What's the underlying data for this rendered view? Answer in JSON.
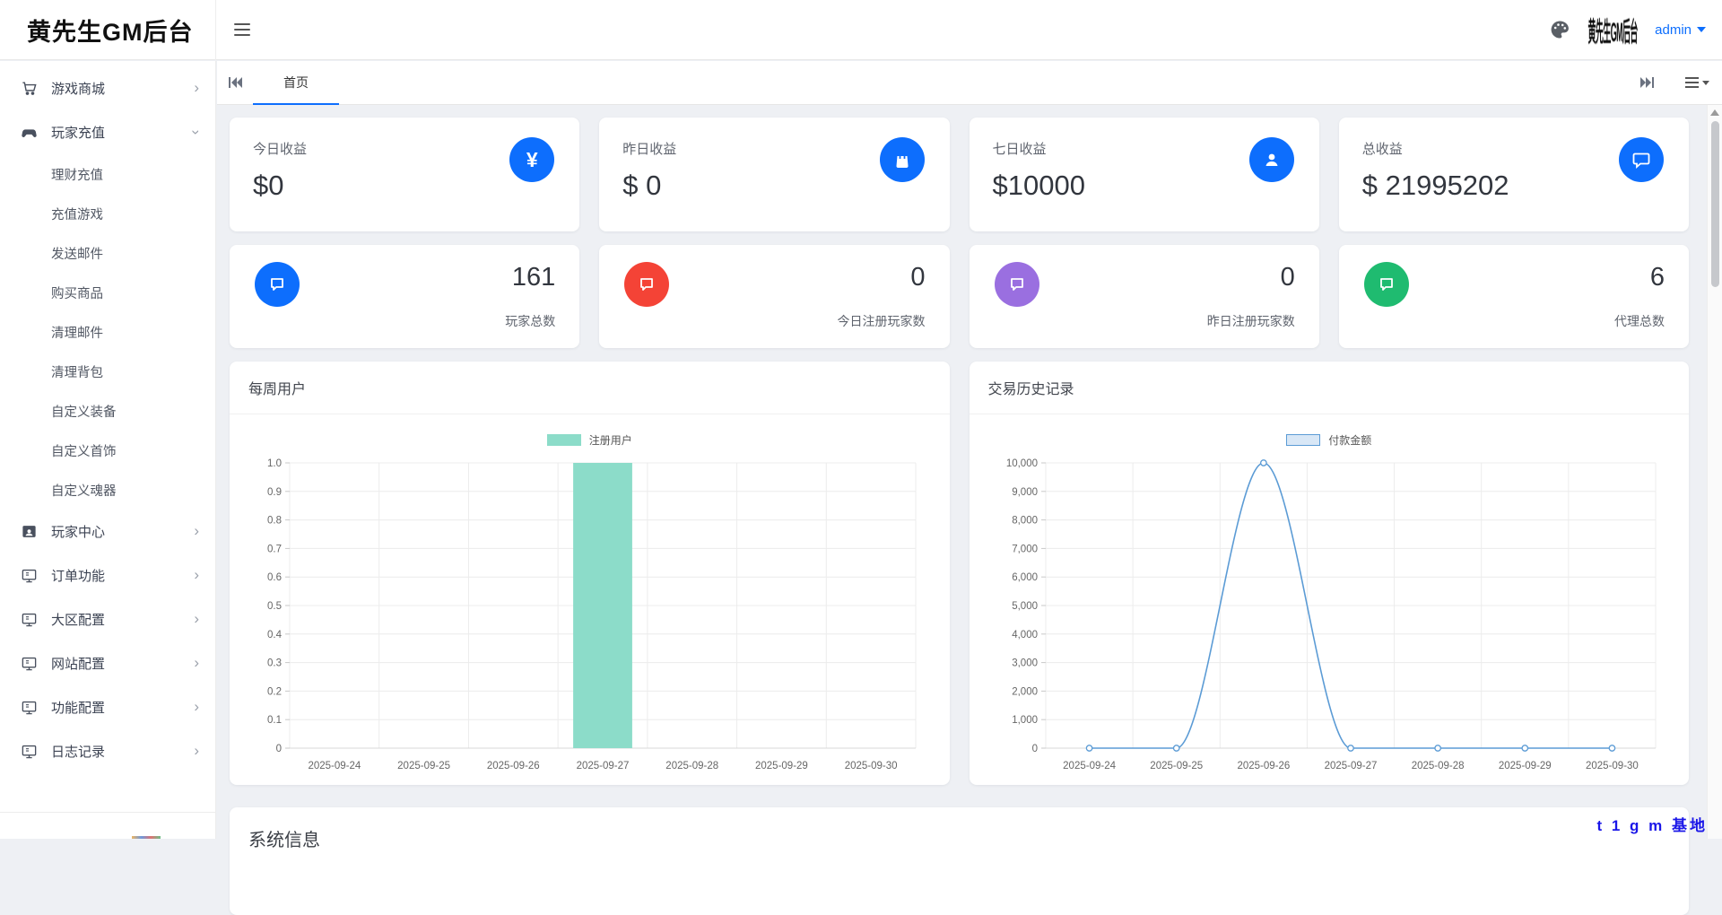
{
  "header": {
    "logo": "黄先生GM后台",
    "avatar_text": "黄先生GM后台",
    "username": "admin"
  },
  "tabbar": {
    "tabs": [
      {
        "label": "首页",
        "active": true
      }
    ]
  },
  "sidebar": {
    "items": [
      {
        "label": "游戏商城",
        "icon": "cart-icon",
        "expanded": false,
        "children": []
      },
      {
        "label": "玩家充值",
        "icon": "gamepad-icon",
        "expanded": true,
        "children": [
          "理财充值",
          "充值游戏",
          "发送邮件",
          "购买商品",
          "清理邮件",
          "清理背包",
          "自定义装备",
          "自定义首饰",
          "自定义魂器"
        ]
      },
      {
        "label": "玩家中心",
        "icon": "user-card-icon",
        "expanded": false,
        "children": []
      },
      {
        "label": "订单功能",
        "icon": "display-icon",
        "expanded": false,
        "children": []
      },
      {
        "label": "大区配置",
        "icon": "display-icon",
        "expanded": false,
        "children": []
      },
      {
        "label": "网站配置",
        "icon": "display-icon",
        "expanded": false,
        "children": []
      },
      {
        "label": "功能配置",
        "icon": "display-icon",
        "expanded": false,
        "children": []
      },
      {
        "label": "日志记录",
        "icon": "display-icon",
        "expanded": false,
        "children": []
      }
    ]
  },
  "stats_row1": [
    {
      "label": "今日收益",
      "value": "$0",
      "icon": "yen-icon",
      "color": "#0d6efd"
    },
    {
      "label": "昨日收益",
      "value": "$ 0",
      "icon": "bag-icon",
      "color": "#0d6efd"
    },
    {
      "label": "七日收益",
      "value": "$10000",
      "icon": "user-icon",
      "color": "#0d6efd"
    },
    {
      "label": "总收益",
      "value": "$ 21995202",
      "icon": "chat-icon",
      "color": "#0d6efd"
    }
  ],
  "stats_row2": [
    {
      "value": "161",
      "label": "玩家总数",
      "icon": "message-icon",
      "color": "#0d6efd"
    },
    {
      "value": "0",
      "label": "今日注册玩家数",
      "icon": "message-icon",
      "color": "#f44336"
    },
    {
      "value": "0",
      "label": "昨日注册玩家数",
      "icon": "message-icon",
      "color": "#9a6fe0"
    },
    {
      "value": "6",
      "label": "代理总数",
      "icon": "message-icon",
      "color": "#1fbb70"
    }
  ],
  "chart_data": [
    {
      "type": "bar",
      "title": "每周用户",
      "legend": "注册用户",
      "legend_position": "top-center",
      "categories": [
        "2025-09-24",
        "2025-09-25",
        "2025-09-26",
        "2025-09-27",
        "2025-09-28",
        "2025-09-29",
        "2025-09-30"
      ],
      "values": [
        0,
        0,
        0,
        1,
        0,
        0,
        0
      ],
      "ylim": [
        0,
        1
      ],
      "ytick_labels": [
        "1.0",
        "0.9",
        "0.8",
        "0.7",
        "0.6",
        "0.5",
        "0.4",
        "0.3",
        "0.2",
        "0.1",
        "0"
      ],
      "grid": true,
      "color": "#8cdcc9",
      "xlabel": "",
      "ylabel": ""
    },
    {
      "type": "line",
      "title": "交易历史记录",
      "legend": "付款金额",
      "legend_position": "top-center",
      "categories": [
        "2025-09-24",
        "2025-09-25",
        "2025-09-26",
        "2025-09-27",
        "2025-09-28",
        "2025-09-29",
        "2025-09-30"
      ],
      "values": [
        0,
        0,
        10000,
        0,
        0,
        0,
        0
      ],
      "ylim": [
        0,
        10000
      ],
      "ytick_labels": [
        "10,000",
        "9,000",
        "8,000",
        "7,000",
        "6,000",
        "5,000",
        "4,000",
        "3,000",
        "2,000",
        "1,000",
        "0"
      ],
      "grid": true,
      "color": "#5b9bd5",
      "markers": true,
      "xlabel": "",
      "ylabel": ""
    }
  ],
  "system_info": {
    "title": "系统信息"
  },
  "watermark": "t 1 g m 基地"
}
